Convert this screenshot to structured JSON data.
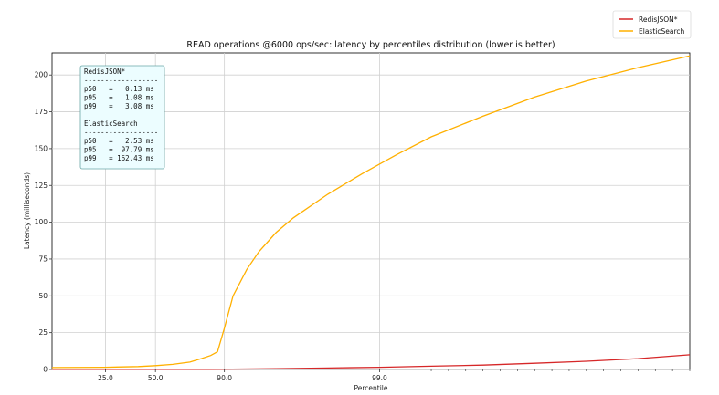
{
  "chart_data": {
    "type": "line",
    "title": "READ operations @6000 ops/sec: latency by percentiles distribution (lower is better)",
    "xlabel": "Percentile",
    "ylabel": "Latency (milliseconds)",
    "ylim": [
      0,
      215
    ],
    "yticks": [
      0,
      25,
      50,
      75,
      100,
      125,
      150,
      175,
      200
    ],
    "xticks": [
      "25.0",
      "50.0",
      "90.0",
      "99.0"
    ],
    "grid": true,
    "legend": {
      "position": "top-right",
      "entries": [
        "RedisJSON*",
        "ElasticSearch"
      ]
    },
    "series": [
      {
        "name": "RedisJSON*",
        "color": "#d62728",
        "points": [
          [
            0,
            0.1
          ],
          [
            0.5,
            0.12
          ],
          [
            0.9,
            0.15
          ],
          [
            1.0,
            0.2
          ],
          [
            1.3,
            0.5
          ],
          [
            1.6,
            1.0
          ],
          [
            1.9,
            1.5
          ],
          [
            2.2,
            2.2
          ],
          [
            2.5,
            3.0
          ],
          [
            2.8,
            4.2
          ],
          [
            3.1,
            5.6
          ],
          [
            3.4,
            7.4
          ],
          [
            3.7,
            10.0
          ]
        ]
      },
      {
        "name": "ElasticSearch",
        "color": "#ffb000",
        "points": [
          [
            0,
            1.3
          ],
          [
            0.3,
            1.5
          ],
          [
            0.5,
            2.0
          ],
          [
            0.6,
            2.6
          ],
          [
            0.7,
            3.5
          ],
          [
            0.8,
            5.0
          ],
          [
            0.87,
            7.5
          ],
          [
            0.92,
            9.5
          ],
          [
            0.96,
            12.0
          ],
          [
            1.0,
            28.0
          ],
          [
            1.05,
            50.0
          ],
          [
            1.13,
            68.0
          ],
          [
            1.2,
            80.0
          ],
          [
            1.3,
            93.0
          ],
          [
            1.4,
            103.0
          ],
          [
            1.6,
            119.0
          ],
          [
            1.8,
            133.0
          ],
          [
            2.0,
            146.0
          ],
          [
            2.2,
            158.0
          ],
          [
            2.5,
            172.0
          ],
          [
            2.8,
            185.0
          ],
          [
            3.1,
            196.0
          ],
          [
            3.4,
            205.0
          ],
          [
            3.7,
            213.0
          ]
        ]
      }
    ],
    "stats_box": {
      "lines": [
        "RedisJSON*",
        "------------------",
        "p50   =   0.13 ms",
        "p95   =   1.08 ms",
        "p99   =   3.08 ms",
        "",
        "ElasticSearch",
        "------------------",
        "p50   =   2.53 ms",
        "p95   =  97.79 ms",
        "p99   = 162.43 ms"
      ]
    }
  }
}
